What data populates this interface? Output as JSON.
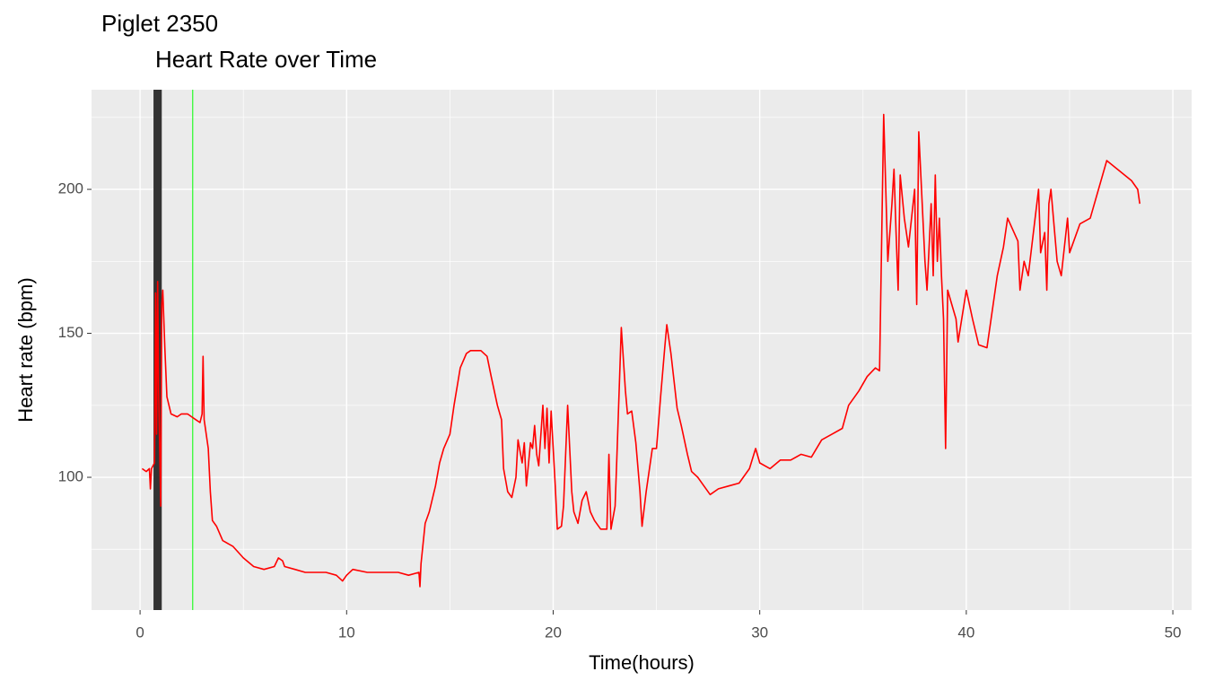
{
  "chart_data": {
    "type": "line",
    "title": "Piglet 2350",
    "subtitle": "Heart Rate over Time",
    "x_label": "Time(hours)",
    "y_label": "Heart rate (bpm)",
    "color": "#ff0000",
    "xlim": [
      -2.35,
      50.91
    ],
    "ylim": [
      53.9,
      234.6
    ],
    "xticks": [
      0,
      10,
      20,
      30,
      40,
      50
    ],
    "yticks": [
      100,
      150,
      200
    ],
    "x_minor_grid": [
      5,
      15,
      25,
      35,
      45
    ],
    "y_minor_grid": [
      75,
      125,
      175,
      225
    ],
    "grid": true,
    "shaded_band": {
      "x": [
        0.65,
        1.05
      ],
      "color": "#333333"
    },
    "vline": {
      "x": 2.55,
      "color": "#00ff00"
    },
    "x": [
      0.1,
      0.3,
      0.45,
      0.5,
      0.55,
      0.7,
      0.75,
      0.8,
      0.85,
      0.9,
      1.0,
      1.05,
      1.1,
      1.2,
      1.3,
      1.5,
      1.8,
      2.0,
      2.3,
      2.5,
      2.7,
      2.9,
      3.0,
      3.05,
      3.1,
      3.3,
      3.4,
      3.5,
      3.7,
      4.0,
      4.5,
      5.0,
      5.5,
      6.0,
      6.5,
      6.7,
      6.9,
      7.0,
      7.5,
      8.0,
      9.0,
      9.5,
      9.8,
      10.0,
      10.3,
      11,
      12,
      12.5,
      13,
      13.5,
      13.55,
      13.6,
      13.8,
      14,
      14.3,
      14.5,
      14.7,
      15,
      15.2,
      15.5,
      15.8,
      16,
      16.5,
      16.8,
      17,
      17.3,
      17.5,
      17.6,
      17.8,
      18,
      18.2,
      18.3,
      18.5,
      18.6,
      18.7,
      18.9,
      19,
      19.1,
      19.2,
      19.3,
      19.5,
      19.6,
      19.7,
      19.8,
      19.9,
      20,
      20.1,
      20.2,
      20.4,
      20.5,
      20.7,
      20.9,
      21,
      21.2,
      21.4,
      21.6,
      21.8,
      22,
      22.3,
      22.6,
      22.7,
      22.8,
      23,
      23.1,
      23.3,
      23.5,
      23.6,
      23.8,
      24,
      24.2,
      24.3,
      24.5,
      24.8,
      25,
      25.2,
      25.4,
      25.5,
      25.7,
      26,
      26.2,
      26.5,
      26.7,
      27,
      27.3,
      27.6,
      28,
      28.5,
      29,
      29.5,
      29.8,
      30,
      30.5,
      31,
      31.5,
      32,
      32.5,
      33,
      33.5,
      34,
      34.3,
      34.8,
      35.2,
      35.6,
      35.8,
      36,
      36.2,
      36.4,
      36.5,
      36.6,
      36.7,
      36.8,
      37,
      37.2,
      37.5,
      37.6,
      37.7,
      38,
      38.1,
      38.3,
      38.4,
      38.5,
      38.6,
      38.7,
      38.8,
      38.9,
      39,
      39.1,
      39.3,
      39.5,
      39.6,
      40,
      40.3,
      40.6,
      41,
      41.2,
      41.5,
      41.8,
      42,
      42.5,
      42.6,
      42.8,
      43,
      43.5,
      43.6,
      43.8,
      43.9,
      44,
      44.1,
      44.4,
      44.6,
      44.9,
      45,
      45.5,
      46,
      46.8,
      48,
      48.3,
      48.4
    ],
    "values": [
      103,
      102,
      103,
      96,
      103,
      105,
      164,
      115,
      168,
      130,
      90,
      160,
      165,
      145,
      128,
      122,
      121,
      122,
      122,
      121,
      120,
      119,
      122,
      142,
      120,
      110,
      95,
      85,
      83,
      78,
      76,
      72,
      69,
      68,
      69,
      72,
      71,
      69,
      68,
      67,
      67,
      66,
      64,
      66,
      68,
      67,
      67,
      67,
      66,
      67,
      62,
      70,
      84,
      88,
      97,
      105,
      110,
      115,
      125,
      138,
      143,
      144,
      144,
      142,
      135,
      125,
      120,
      103,
      95,
      93,
      100,
      113,
      105,
      112,
      97,
      112,
      110,
      118,
      108,
      104,
      125,
      110,
      124,
      105,
      123,
      110,
      97,
      82,
      83,
      90,
      125,
      95,
      88,
      84,
      92,
      95,
      88,
      85,
      82,
      82,
      108,
      82,
      90,
      110,
      152,
      130,
      122,
      123,
      112,
      95,
      83,
      95,
      110,
      110,
      128,
      145,
      153,
      143,
      124,
      118,
      108,
      102,
      100,
      97,
      94,
      96,
      97,
      98,
      103,
      110,
      105,
      103,
      106,
      106,
      108,
      107,
      113,
      115,
      117,
      125,
      130,
      135,
      138,
      137,
      226,
      175,
      195,
      207,
      185,
      165,
      205,
      190,
      180,
      200,
      160,
      220,
      175,
      165,
      195,
      170,
      205,
      175,
      190,
      170,
      155,
      110,
      165,
      160,
      155,
      147,
      165,
      155,
      146,
      145,
      155,
      170,
      180,
      190,
      182,
      165,
      175,
      170,
      200,
      178,
      185,
      165,
      195,
      200,
      175,
      170,
      190,
      178,
      188,
      190,
      210,
      203,
      200,
      195
    ]
  }
}
